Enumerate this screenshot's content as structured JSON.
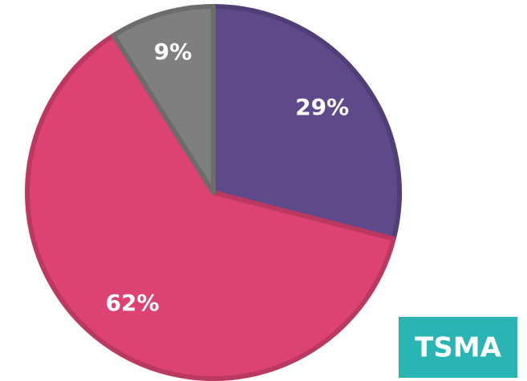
{
  "chart_data": {
    "type": "pie",
    "values": [
      29,
      62,
      9
    ],
    "value_labels": [
      "29%",
      "62%",
      "9%"
    ],
    "colors": [
      "#5e4a8b",
      "#dc4372",
      "#7f7f7f"
    ],
    "start_angle": 0,
    "direction": "clockwise",
    "annotation": "TSMA"
  }
}
